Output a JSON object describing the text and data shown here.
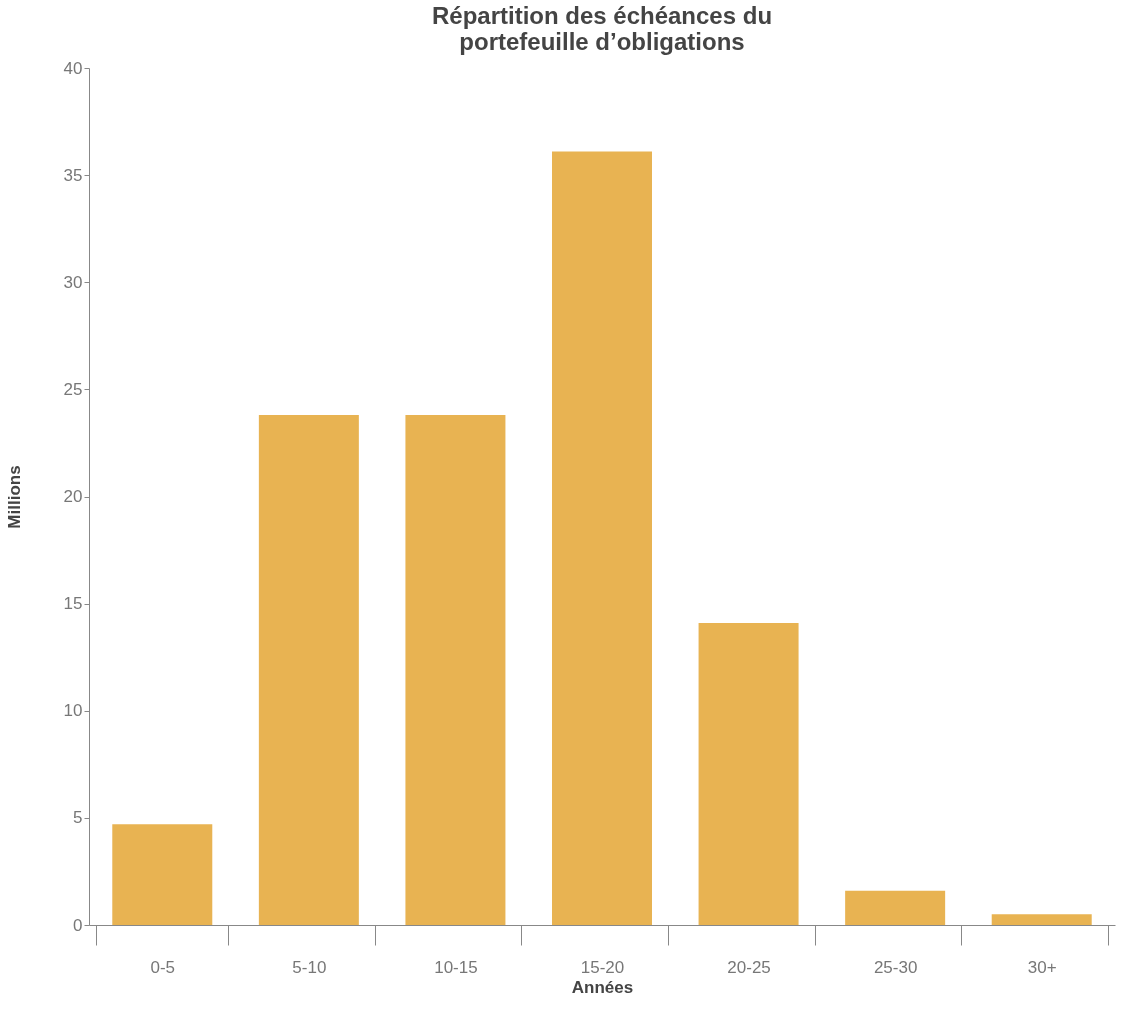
{
  "chart_data": {
    "type": "bar",
    "title": "Répartition des échéances du portefeuille d’obligations",
    "xlabel": "Années",
    "ylabel": "Millions",
    "categories": [
      "0-5",
      "5-10",
      "10-15",
      "15-20",
      "20-25",
      "25-30",
      "30+"
    ],
    "values": [
      4.7,
      23.8,
      23.8,
      36.1,
      14.1,
      1.6,
      0.5
    ],
    "color": "#e8b352",
    "ylim": [
      0,
      40
    ],
    "yticks": [
      0,
      5,
      10,
      15,
      20,
      25,
      30,
      35,
      40
    ],
    "grid": false
  }
}
